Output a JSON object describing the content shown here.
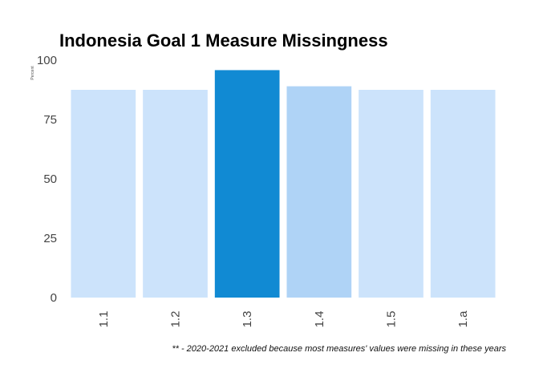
{
  "chart_data": {
    "type": "bar",
    "title": "Indonesia Goal 1 Measure Missingness",
    "xlabel": "",
    "ylabel": "Percent",
    "categories": [
      "1.1",
      "1.2",
      "1.3",
      "1.4",
      "1.5",
      "1.a"
    ],
    "values": [
      87.5,
      87.5,
      95.8,
      89.0,
      87.5,
      87.5
    ],
    "bar_colors": [
      "#cce3fb",
      "#cce3fb",
      "#118ad3",
      "#afd3f6",
      "#cce3fb",
      "#cce3fb"
    ],
    "ylim": [
      0,
      100
    ],
    "yticks": [
      0,
      25,
      50,
      75,
      100
    ],
    "grid": false,
    "legend": "none",
    "footnote": "** - 2020-2021 excluded because most measures' values were missing in these years"
  }
}
